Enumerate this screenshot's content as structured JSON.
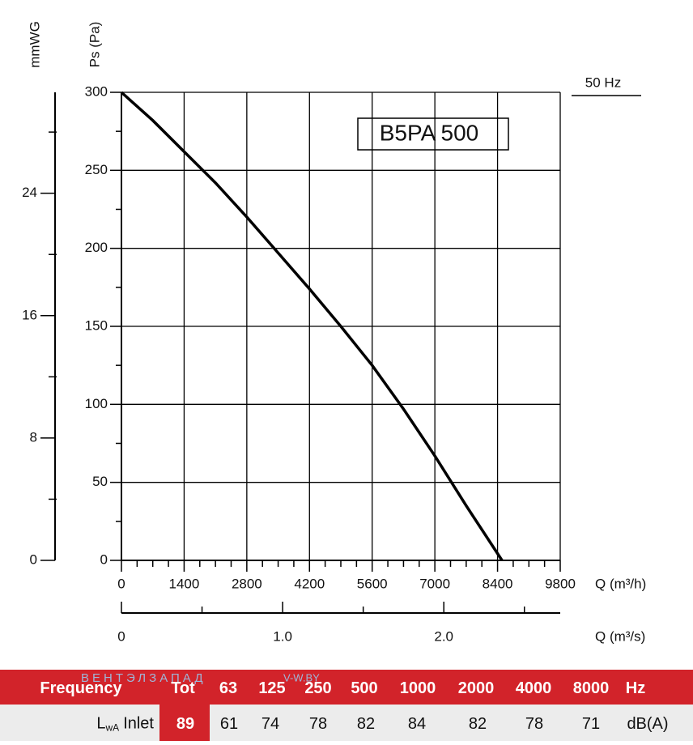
{
  "chart_data": {
    "type": "line",
    "title": "B5PA 500",
    "subtitle": "50 Hz",
    "y_label": "Ps (Pa)",
    "y2_label": "mmWG",
    "x_label": "Q (m³/h)",
    "x2_label": "Q (m³/s)",
    "x": [
      0,
      700,
      1400,
      2100,
      2800,
      3500,
      4200,
      4900,
      5600,
      6300,
      7000,
      7700,
      8500
    ],
    "values": [
      300,
      282,
      262,
      242,
      220,
      197,
      174,
      150,
      125,
      97,
      67,
      35,
      0
    ],
    "color": "#000000",
    "xlim": [
      0,
      9800
    ],
    "xticks": [
      0,
      1400,
      2800,
      4200,
      5600,
      7000,
      8400,
      9800
    ],
    "ylim": [
      0,
      300
    ],
    "yticks": [
      0,
      50,
      100,
      150,
      200,
      250,
      300
    ],
    "y2lim": [
      0,
      30.6
    ],
    "y2ticks": [
      0,
      8,
      16,
      24
    ],
    "x2lim": [
      0,
      2.7222
    ],
    "x2ticks": [
      0,
      {
        "value": 1,
        "label": "1.0"
      },
      {
        "value": 2,
        "label": "2.0"
      }
    ],
    "grid": true
  },
  "watermark": [
    "ВЕНТЭЛЗАПАД",
    "V-W.BY"
  ],
  "table": {
    "header": [
      "Frequency",
      "Tot",
      "63",
      "125",
      "250",
      "500",
      "1000",
      "2000",
      "4000",
      "8000",
      "Hz"
    ],
    "row": {
      "label": "L",
      "label_sub": "wA",
      "label_text": "Inlet",
      "cells": [
        89,
        61,
        74,
        78,
        82,
        84,
        82,
        78,
        71
      ],
      "unit": "dB(A)"
    }
  }
}
